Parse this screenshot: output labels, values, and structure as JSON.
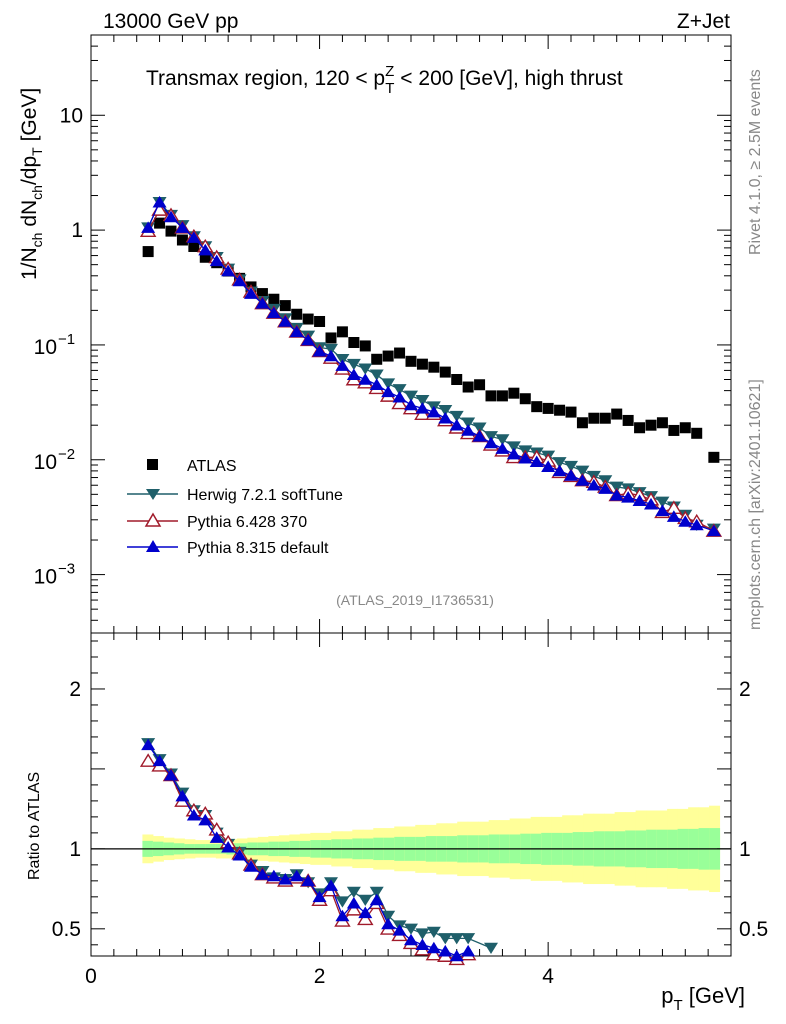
{
  "header": {
    "energy_label": "13000 GeV pp",
    "process_label": "Z+Jet"
  },
  "title": {
    "prefix": "Transmax region, 120 < p",
    "sup": "Z",
    "sub": "T",
    "suffix": " < 200 [GeV], high thrust"
  },
  "side_labels": {
    "rivet": "Rivet 4.1.0, ≥ 2.5M events",
    "source": "mcplots.cern.ch [arXiv:2401.10621]"
  },
  "analysis_id": "(ATLAS_2019_I1736531)",
  "colors": {
    "atlas": "#000000",
    "herwig": "#1f5f6a",
    "pythia6": "#a01a2a",
    "pythia8": "#0000cc",
    "band_outer": "#ffff99",
    "band_inner": "#99ff99"
  },
  "chart_data": [
    {
      "type": "scatter",
      "panel": "main",
      "ylabel": "1/N_ch dN_ch/dp_T [GeV]",
      "yscale": "log",
      "ylim": [
        0.00031,
        50
      ],
      "y_ticks": [
        {
          "value": 10,
          "label": "10"
        },
        {
          "value": 1,
          "label": "1"
        },
        {
          "value": 0.1,
          "base": "10",
          "exp": "−1"
        },
        {
          "value": 0.01,
          "base": "10",
          "exp": "−2"
        },
        {
          "value": 0.001,
          "base": "10",
          "exp": "−3"
        }
      ],
      "x": [
        0.5,
        0.6,
        0.7,
        0.8,
        0.9,
        1.0,
        1.1,
        1.2,
        1.3,
        1.4,
        1.5,
        1.6,
        1.7,
        1.8,
        1.9,
        2.0,
        2.1,
        2.2,
        2.3,
        2.4,
        2.5,
        2.6,
        2.7,
        2.8,
        2.9,
        3.0,
        3.1,
        3.2,
        3.3,
        3.4,
        3.5,
        3.6,
        3.7,
        3.8,
        3.9,
        4.0,
        4.1,
        4.2,
        4.3,
        4.4,
        4.5,
        4.6,
        4.7,
        4.8,
        4.9,
        5.0,
        5.1,
        5.2,
        5.3,
        5.45
      ],
      "series": [
        {
          "name": "ATLAS",
          "marker": "square",
          "values": [
            0.65,
            1.15,
            0.98,
            0.82,
            0.72,
            0.58,
            0.52,
            0.44,
            0.38,
            0.32,
            0.28,
            0.25,
            0.22,
            0.185,
            0.168,
            0.16,
            0.115,
            0.13,
            0.105,
            0.098,
            0.075,
            0.08,
            0.085,
            0.072,
            0.068,
            0.064,
            0.058,
            0.05,
            0.043,
            0.045,
            0.036,
            0.036,
            0.038,
            0.034,
            0.029,
            0.028,
            0.027,
            0.026,
            0.021,
            0.023,
            0.023,
            0.025,
            0.022,
            0.019,
            0.02,
            0.021,
            0.018,
            0.019,
            0.017,
            0.0105
          ]
        },
        {
          "name": "Herwig 7.2.1 softTune",
          "marker": "triangle-down",
          "values": [
            1.05,
            1.75,
            1.35,
            1.1,
            0.88,
            0.72,
            0.58,
            0.46,
            0.37,
            0.29,
            0.24,
            0.205,
            0.17,
            0.14,
            0.12,
            0.095,
            0.092,
            0.075,
            0.068,
            0.062,
            0.055,
            0.046,
            0.041,
            0.036,
            0.033,
            0.029,
            0.027,
            0.024,
            0.021,
            0.019,
            0.016,
            0.015,
            0.013,
            0.012,
            0.0115,
            0.0108,
            0.0095,
            0.0088,
            0.008,
            0.0072,
            0.0066,
            0.0058,
            0.0056,
            0.0052,
            0.0048,
            0.0043,
            0.0039,
            0.0033,
            0.0027,
            0.0025
          ]
        },
        {
          "name": "Pythia 6.428 370",
          "marker": "triangle-up-open",
          "values": [
            0.98,
            1.5,
            1.35,
            1.05,
            0.88,
            0.72,
            0.58,
            0.46,
            0.37,
            0.29,
            0.23,
            0.19,
            0.16,
            0.13,
            0.11,
            0.088,
            0.077,
            0.062,
            0.05,
            0.047,
            0.042,
            0.036,
            0.031,
            0.028,
            0.025,
            0.025,
            0.022,
            0.019,
            0.017,
            0.016,
            0.0135,
            0.012,
            0.0105,
            0.0105,
            0.0105,
            0.0098,
            0.0078,
            0.0072,
            0.0066,
            0.0064,
            0.0058,
            0.0049,
            0.0051,
            0.0049,
            0.0045,
            0.0035,
            0.0038,
            0.0031,
            0.0029,
            0.0024
          ]
        },
        {
          "name": "Pythia 8.315 default",
          "marker": "triangle-up",
          "values": [
            1.05,
            1.75,
            1.3,
            1.05,
            0.86,
            0.67,
            0.54,
            0.44,
            0.36,
            0.28,
            0.23,
            0.19,
            0.16,
            0.13,
            0.11,
            0.088,
            0.08,
            0.066,
            0.055,
            0.05,
            0.045,
            0.039,
            0.035,
            0.03,
            0.028,
            0.026,
            0.023,
            0.02,
            0.018,
            0.016,
            0.014,
            0.0125,
            0.0112,
            0.0103,
            0.0096,
            0.0087,
            0.008,
            0.0073,
            0.0066,
            0.006,
            0.0056,
            0.0049,
            0.0047,
            0.0044,
            0.0041,
            0.0036,
            0.0032,
            0.0029,
            0.0027,
            0.0024
          ]
        }
      ]
    },
    {
      "type": "scatter",
      "panel": "ratio",
      "ylabel": "Ratio to ATLAS",
      "ylim": [
        0.33,
        2.35
      ],
      "y_ticks": [
        {
          "value": 2,
          "label": "2"
        },
        {
          "value": 1,
          "label": "1"
        },
        {
          "value": 0.5,
          "label": "0.5"
        }
      ],
      "xlabel": "p_T [GeV]",
      "xlim": [
        0,
        5.6
      ],
      "x_ticks": [
        {
          "value": 0,
          "label": "0"
        },
        {
          "value": 2,
          "label": "2"
        },
        {
          "value": 4,
          "label": "4"
        }
      ],
      "x": [
        0.5,
        0.6,
        0.7,
        0.8,
        0.9,
        1.0,
        1.1,
        1.2,
        1.3,
        1.4,
        1.5,
        1.6,
        1.7,
        1.8,
        1.9,
        2.0,
        2.1,
        2.2,
        2.3,
        2.4,
        2.5,
        2.6,
        2.7,
        2.8,
        2.9,
        3.0,
        3.1,
        3.2,
        3.3,
        3.4,
        3.5
      ],
      "band_inner_halfwidth": [
        0.05,
        0.045,
        0.04,
        0.035,
        0.03,
        0.03,
        0.03,
        0.03,
        0.035,
        0.035,
        0.04,
        0.04,
        0.045,
        0.045,
        0.05,
        0.05,
        0.055,
        0.055,
        0.06,
        0.06,
        0.065,
        0.065,
        0.07,
        0.07,
        0.075,
        0.075,
        0.075,
        0.08,
        0.08,
        0.08,
        0.085,
        0.085,
        0.085,
        0.09,
        0.09,
        0.09,
        0.095,
        0.095,
        0.1,
        0.1,
        0.1,
        0.105,
        0.105,
        0.11,
        0.11,
        0.11,
        0.115,
        0.115,
        0.12,
        0.12,
        0.12,
        0.125,
        0.125,
        0.13,
        0.13
      ],
      "band_outer_halfwidth": [
        0.09,
        0.08,
        0.07,
        0.065,
        0.06,
        0.055,
        0.055,
        0.06,
        0.06,
        0.065,
        0.07,
        0.075,
        0.08,
        0.085,
        0.09,
        0.095,
        0.1,
        0.1,
        0.11,
        0.11,
        0.12,
        0.12,
        0.13,
        0.13,
        0.14,
        0.14,
        0.15,
        0.15,
        0.16,
        0.16,
        0.17,
        0.17,
        0.17,
        0.18,
        0.18,
        0.19,
        0.19,
        0.2,
        0.2,
        0.2,
        0.21,
        0.21,
        0.22,
        0.22,
        0.22,
        0.23,
        0.23,
        0.24,
        0.24,
        0.24,
        0.25,
        0.25,
        0.26,
        0.26,
        0.27
      ],
      "band_xlim": [
        0.45,
        5.5
      ],
      "series": [
        {
          "name": "Herwig 7.2.1 softTune",
          "marker": "triangle-down",
          "values": [
            1.66,
            1.56,
            1.47,
            1.35,
            1.24,
            1.21,
            1.1,
            1.03,
            0.98,
            0.9,
            0.86,
            0.82,
            0.81,
            0.84,
            0.79,
            0.72,
            0.79,
            0.67,
            0.73,
            0.68,
            0.73,
            0.58,
            0.52,
            0.5,
            0.47,
            0.48,
            0.44,
            0.44,
            0.44,
            null,
            0.38
          ]
        },
        {
          "name": "Pythia 6.428 370",
          "marker": "triangle-up-open",
          "values": [
            1.55,
            1.52,
            1.46,
            1.3,
            1.24,
            1.22,
            1.12,
            1.04,
            0.97,
            0.9,
            0.84,
            0.82,
            0.8,
            0.82,
            0.8,
            0.68,
            0.74,
            0.55,
            0.62,
            0.56,
            0.66,
            0.5,
            0.46,
            0.41,
            0.37,
            0.34,
            0.33,
            0.31,
            0.34,
            null,
            null
          ]
        },
        {
          "name": "Pythia 8.315 default",
          "marker": "triangle-up",
          "values": [
            1.65,
            1.55,
            1.46,
            1.33,
            1.21,
            1.18,
            1.07,
            1.01,
            0.96,
            0.89,
            0.84,
            0.83,
            0.81,
            0.83,
            0.8,
            0.7,
            0.77,
            0.58,
            0.66,
            0.6,
            0.68,
            0.53,
            0.49,
            0.43,
            0.4,
            0.38,
            0.36,
            0.33,
            0.36,
            null,
            null
          ]
        }
      ]
    }
  ],
  "legend": [
    {
      "name": "ATLAS",
      "label": "ATLAS"
    },
    {
      "name": "Herwig",
      "label": "Herwig 7.2.1 softTune"
    },
    {
      "name": "Pythia6",
      "label": "Pythia 6.428 370"
    },
    {
      "name": "Pythia8",
      "label": "Pythia 8.315 default"
    }
  ]
}
